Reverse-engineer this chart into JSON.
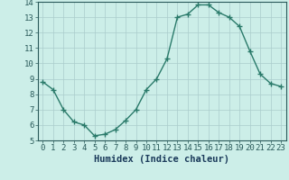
{
  "x": [
    0,
    1,
    2,
    3,
    4,
    5,
    6,
    7,
    8,
    9,
    10,
    11,
    12,
    13,
    14,
    15,
    16,
    17,
    18,
    19,
    20,
    21,
    22,
    23
  ],
  "y": [
    8.8,
    8.3,
    7.0,
    6.2,
    6.0,
    5.3,
    5.4,
    5.7,
    6.3,
    7.0,
    8.3,
    9.0,
    10.3,
    13.0,
    13.2,
    13.8,
    13.8,
    13.3,
    13.0,
    12.4,
    10.8,
    9.3,
    8.7,
    8.5
  ],
  "xlim": [
    -0.5,
    23.5
  ],
  "ylim": [
    5,
    14
  ],
  "yticks": [
    5,
    6,
    7,
    8,
    9,
    10,
    11,
    12,
    13,
    14
  ],
  "xticks": [
    0,
    1,
    2,
    3,
    4,
    5,
    6,
    7,
    8,
    9,
    10,
    11,
    12,
    13,
    14,
    15,
    16,
    17,
    18,
    19,
    20,
    21,
    22,
    23
  ],
  "xlabel": "Humidex (Indice chaleur)",
  "line_color": "#2a7a6a",
  "marker": "+",
  "marker_size": 4,
  "bg_color": "#cceee8",
  "grid_color": "#aacccc",
  "tick_label_color": "#2a5a5a",
  "xlabel_color": "#1a3a5a",
  "xlabel_fontsize": 7.5,
  "tick_fontsize": 6.5,
  "line_width": 1.0
}
